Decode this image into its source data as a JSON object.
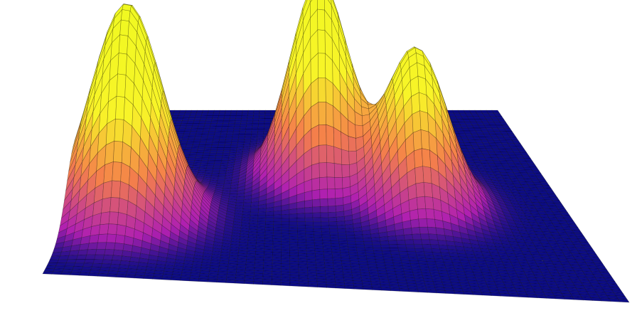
{
  "chart_data": {
    "type": "surface",
    "peaks": [
      {
        "x": 0.1,
        "y": 0.64,
        "height": 1.0,
        "spread_x": 0.07,
        "spread_y": 0.1
      },
      {
        "x": 0.49,
        "y": 0.38,
        "height": 0.93,
        "spread_x": 0.065,
        "spread_y": 0.085
      },
      {
        "x": 0.69,
        "y": 0.5,
        "height": 0.72,
        "spread_x": 0.065,
        "spread_y": 0.09
      }
    ],
    "xlim": [
      0,
      1
    ],
    "ylim": [
      0,
      1
    ],
    "zlim": [
      0,
      1
    ],
    "colorscale": [
      [
        0,
        "#0c0c85"
      ],
      [
        0.08,
        "#b020b0"
      ],
      [
        0.3,
        "#f5804a"
      ],
      [
        0.55,
        "#f8f428"
      ],
      [
        1,
        "#f0f921"
      ]
    ],
    "grid": true
  }
}
